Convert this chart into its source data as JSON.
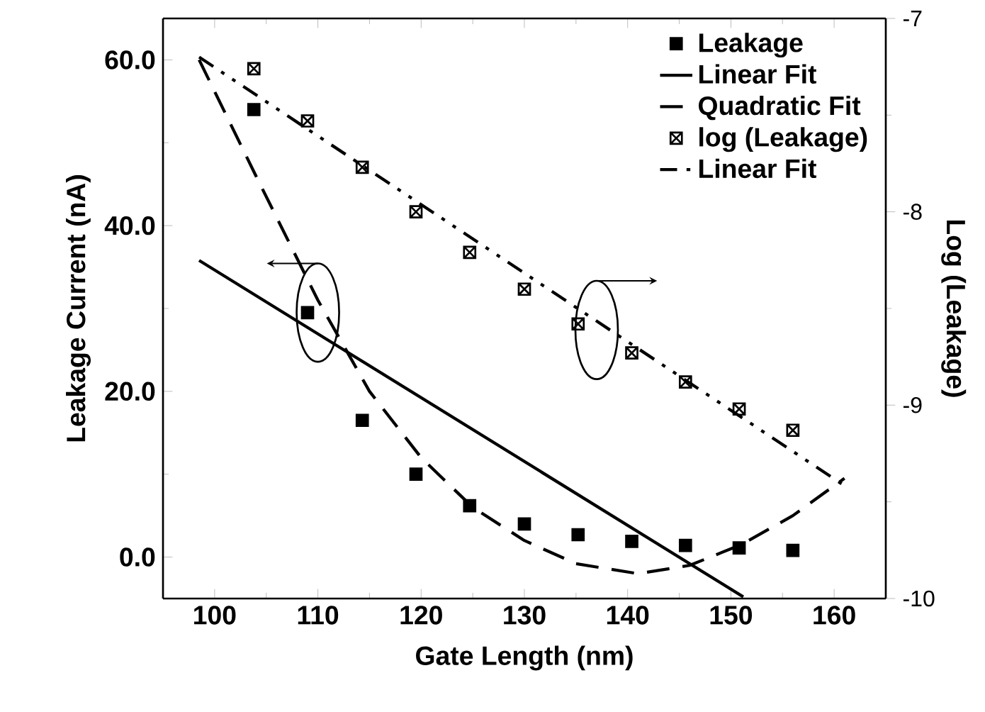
{
  "chart_data": {
    "type": "scatter",
    "xlabel": "Gate Length (nm)",
    "ylabel": "Leakage Current (nA)",
    "y2label": "Log (Leakage)",
    "xlim": [
      95,
      165
    ],
    "xticks": [
      100,
      110,
      120,
      130,
      140,
      150,
      160
    ],
    "ylim": [
      -5,
      65
    ],
    "yticks": [
      {
        "value": 0,
        "label": "0.0"
      },
      {
        "value": 20,
        "label": "20.0"
      },
      {
        "value": 40,
        "label": "40.0"
      },
      {
        "value": 60,
        "label": "60.0"
      }
    ],
    "y2lim": [
      -10,
      -7
    ],
    "y2ticks": [
      -7,
      -8,
      -9,
      -10
    ],
    "legend": "top right",
    "grid": false,
    "series": [
      {
        "name": "Leakage",
        "marker": "square",
        "color": "#000000",
        "x": [
          103.8,
          109,
          114.3,
          119.5,
          124.7,
          130,
          135.2,
          140.4,
          145.6,
          150.8,
          156
        ],
        "values": [
          54,
          29.5,
          16.5,
          10,
          6.2,
          4,
          2.7,
          1.9,
          1.4,
          1.1,
          0.8
        ]
      },
      {
        "name": "Linear Fit",
        "type": "line",
        "marker": "none",
        "line_style": "solid",
        "color": "#000000",
        "x": [
          98.5,
          151.2
        ],
        "values": [
          35.8,
          -4.8
        ]
      },
      {
        "name": "Quadratic Fit",
        "type": "line",
        "marker": "none",
        "line_style": "dashed",
        "color": "#000000",
        "x": [
          98.5,
          104,
          110,
          115,
          120,
          125,
          130,
          135,
          141,
          146,
          151,
          156,
          161
        ],
        "values": [
          60,
          46,
          31,
          20,
          12,
          6,
          2,
          -0.8,
          -2,
          -1,
          1.5,
          5,
          9.5
        ]
      },
      {
        "name": "log (Leakage)",
        "marker": "cross",
        "axis": "y2",
        "color": "#000000",
        "x": [
          103.8,
          109,
          114.3,
          119.5,
          124.7,
          130,
          135.2,
          140.4,
          145.6,
          150.8,
          156
        ],
        "values": [
          -7.26,
          -7.53,
          -7.77,
          -8.0,
          -8.21,
          -8.4,
          -8.58,
          -8.73,
          -8.88,
          -9.02,
          -9.13
        ]
      },
      {
        "name": "Linear Fit",
        "type": "line",
        "marker": "none",
        "line_style": "dotted",
        "axis": "y2",
        "color": "#000000",
        "x": [
          98.5,
          161.1
        ],
        "values": [
          -7.2,
          -9.42
        ]
      }
    ]
  }
}
